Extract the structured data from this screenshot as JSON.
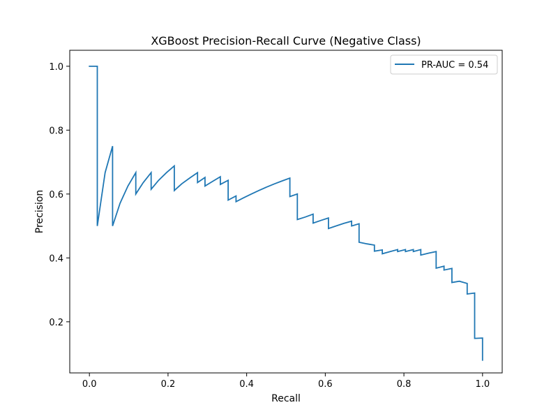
{
  "chart_data": {
    "type": "line",
    "title": "XGBoost Precision-Recall Curve (Negative Class)",
    "xlabel": "Recall",
    "ylabel": "Precision",
    "xlim": [
      -0.05,
      1.05
    ],
    "ylim": [
      0.04,
      1.05
    ],
    "xticks": [
      0.0,
      0.2,
      0.4,
      0.6,
      0.8,
      1.0
    ],
    "xtick_labels": [
      "0.0",
      "0.2",
      "0.4",
      "0.6",
      "0.8",
      "1.0"
    ],
    "yticks": [
      0.2,
      0.4,
      0.6,
      0.8,
      1.0
    ],
    "ytick_labels": [
      "0.2",
      "0.4",
      "0.6",
      "0.8",
      "1.0"
    ],
    "grid": false,
    "legend_position": "top-right",
    "series": [
      {
        "name": "PR-AUC = 0.54",
        "color": "#1f77b4",
        "x": [
          0.0,
          0.02,
          0.02,
          0.04,
          0.059,
          0.059,
          0.078,
          0.098,
          0.118,
          0.118,
          0.137,
          0.157,
          0.157,
          0.176,
          0.196,
          0.216,
          0.216,
          0.235,
          0.255,
          0.275,
          0.275,
          0.294,
          0.294,
          0.314,
          0.333,
          0.333,
          0.353,
          0.353,
          0.373,
          0.373,
          0.392,
          0.412,
          0.431,
          0.451,
          0.471,
          0.49,
          0.51,
          0.51,
          0.529,
          0.529,
          0.549,
          0.569,
          0.569,
          0.588,
          0.608,
          0.608,
          0.627,
          0.647,
          0.667,
          0.667,
          0.686,
          0.686,
          0.706,
          0.725,
          0.725,
          0.745,
          0.745,
          0.765,
          0.784,
          0.784,
          0.804,
          0.804,
          0.824,
          0.824,
          0.843,
          0.843,
          0.863,
          0.882,
          0.882,
          0.902,
          0.902,
          0.922,
          0.922,
          0.941,
          0.961,
          0.961,
          0.98,
          0.98,
          1.0,
          1.0
        ],
        "values": [
          1.0,
          1.0,
          0.5,
          0.667,
          0.75,
          0.5,
          0.571,
          0.625,
          0.667,
          0.6,
          0.636,
          0.667,
          0.615,
          0.643,
          0.667,
          0.688,
          0.611,
          0.632,
          0.65,
          0.667,
          0.636,
          0.652,
          0.625,
          0.64,
          0.654,
          0.63,
          0.643,
          0.581,
          0.594,
          0.576,
          0.588,
          0.6,
          0.611,
          0.622,
          0.632,
          0.641,
          0.65,
          0.592,
          0.6,
          0.52,
          0.528,
          0.537,
          0.509,
          0.517,
          0.525,
          0.492,
          0.5,
          0.508,
          0.515,
          0.5,
          0.507,
          0.449,
          0.444,
          0.44,
          0.421,
          0.425,
          0.413,
          0.42,
          0.426,
          0.42,
          0.426,
          0.42,
          0.426,
          0.42,
          0.426,
          0.409,
          0.415,
          0.42,
          0.368,
          0.374,
          0.362,
          0.367,
          0.323,
          0.327,
          0.32,
          0.287,
          0.29,
          0.148,
          0.149,
          0.08
        ]
      }
    ]
  }
}
